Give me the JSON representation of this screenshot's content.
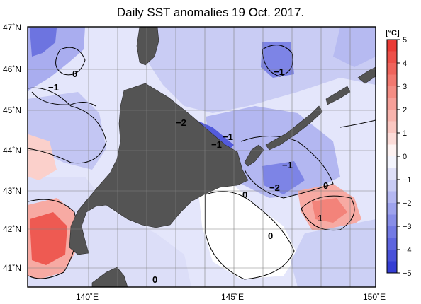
{
  "title": "Daily SST anomalies 19 Oct. 2017.",
  "colorbar": {
    "unit": "[°C]",
    "ticks": [
      "5",
      "4",
      "3",
      "2",
      "1",
      "0",
      "−1",
      "−2",
      "−3",
      "−4",
      "−5"
    ],
    "colors": [
      "#e8302c",
      "#ee5a52",
      "#f3837a",
      "#f7aaa3",
      "#fbd0cb",
      "#ffffff",
      "#d4d6f6",
      "#a9adef",
      "#7d84e6",
      "#535bdc",
      "#2a33d0"
    ]
  },
  "axes": {
    "lat_labels": [
      "47˚N",
      "46˚N",
      "45˚N",
      "44˚N",
      "43˚N",
      "42˚N",
      "41˚N"
    ],
    "lon_labels": [
      "140˚E",
      "145˚E",
      "150˚E"
    ]
  },
  "contour_labels": [
    "0",
    "−1",
    "−1",
    "−1",
    "−2",
    "−1",
    "−1",
    "−2",
    "0",
    "0",
    "1",
    "0",
    "0"
  ],
  "colors": {
    "land": "#545454",
    "ocean_base": "#e6e7fb",
    "frame": "#000000",
    "grid": "#808080"
  }
}
